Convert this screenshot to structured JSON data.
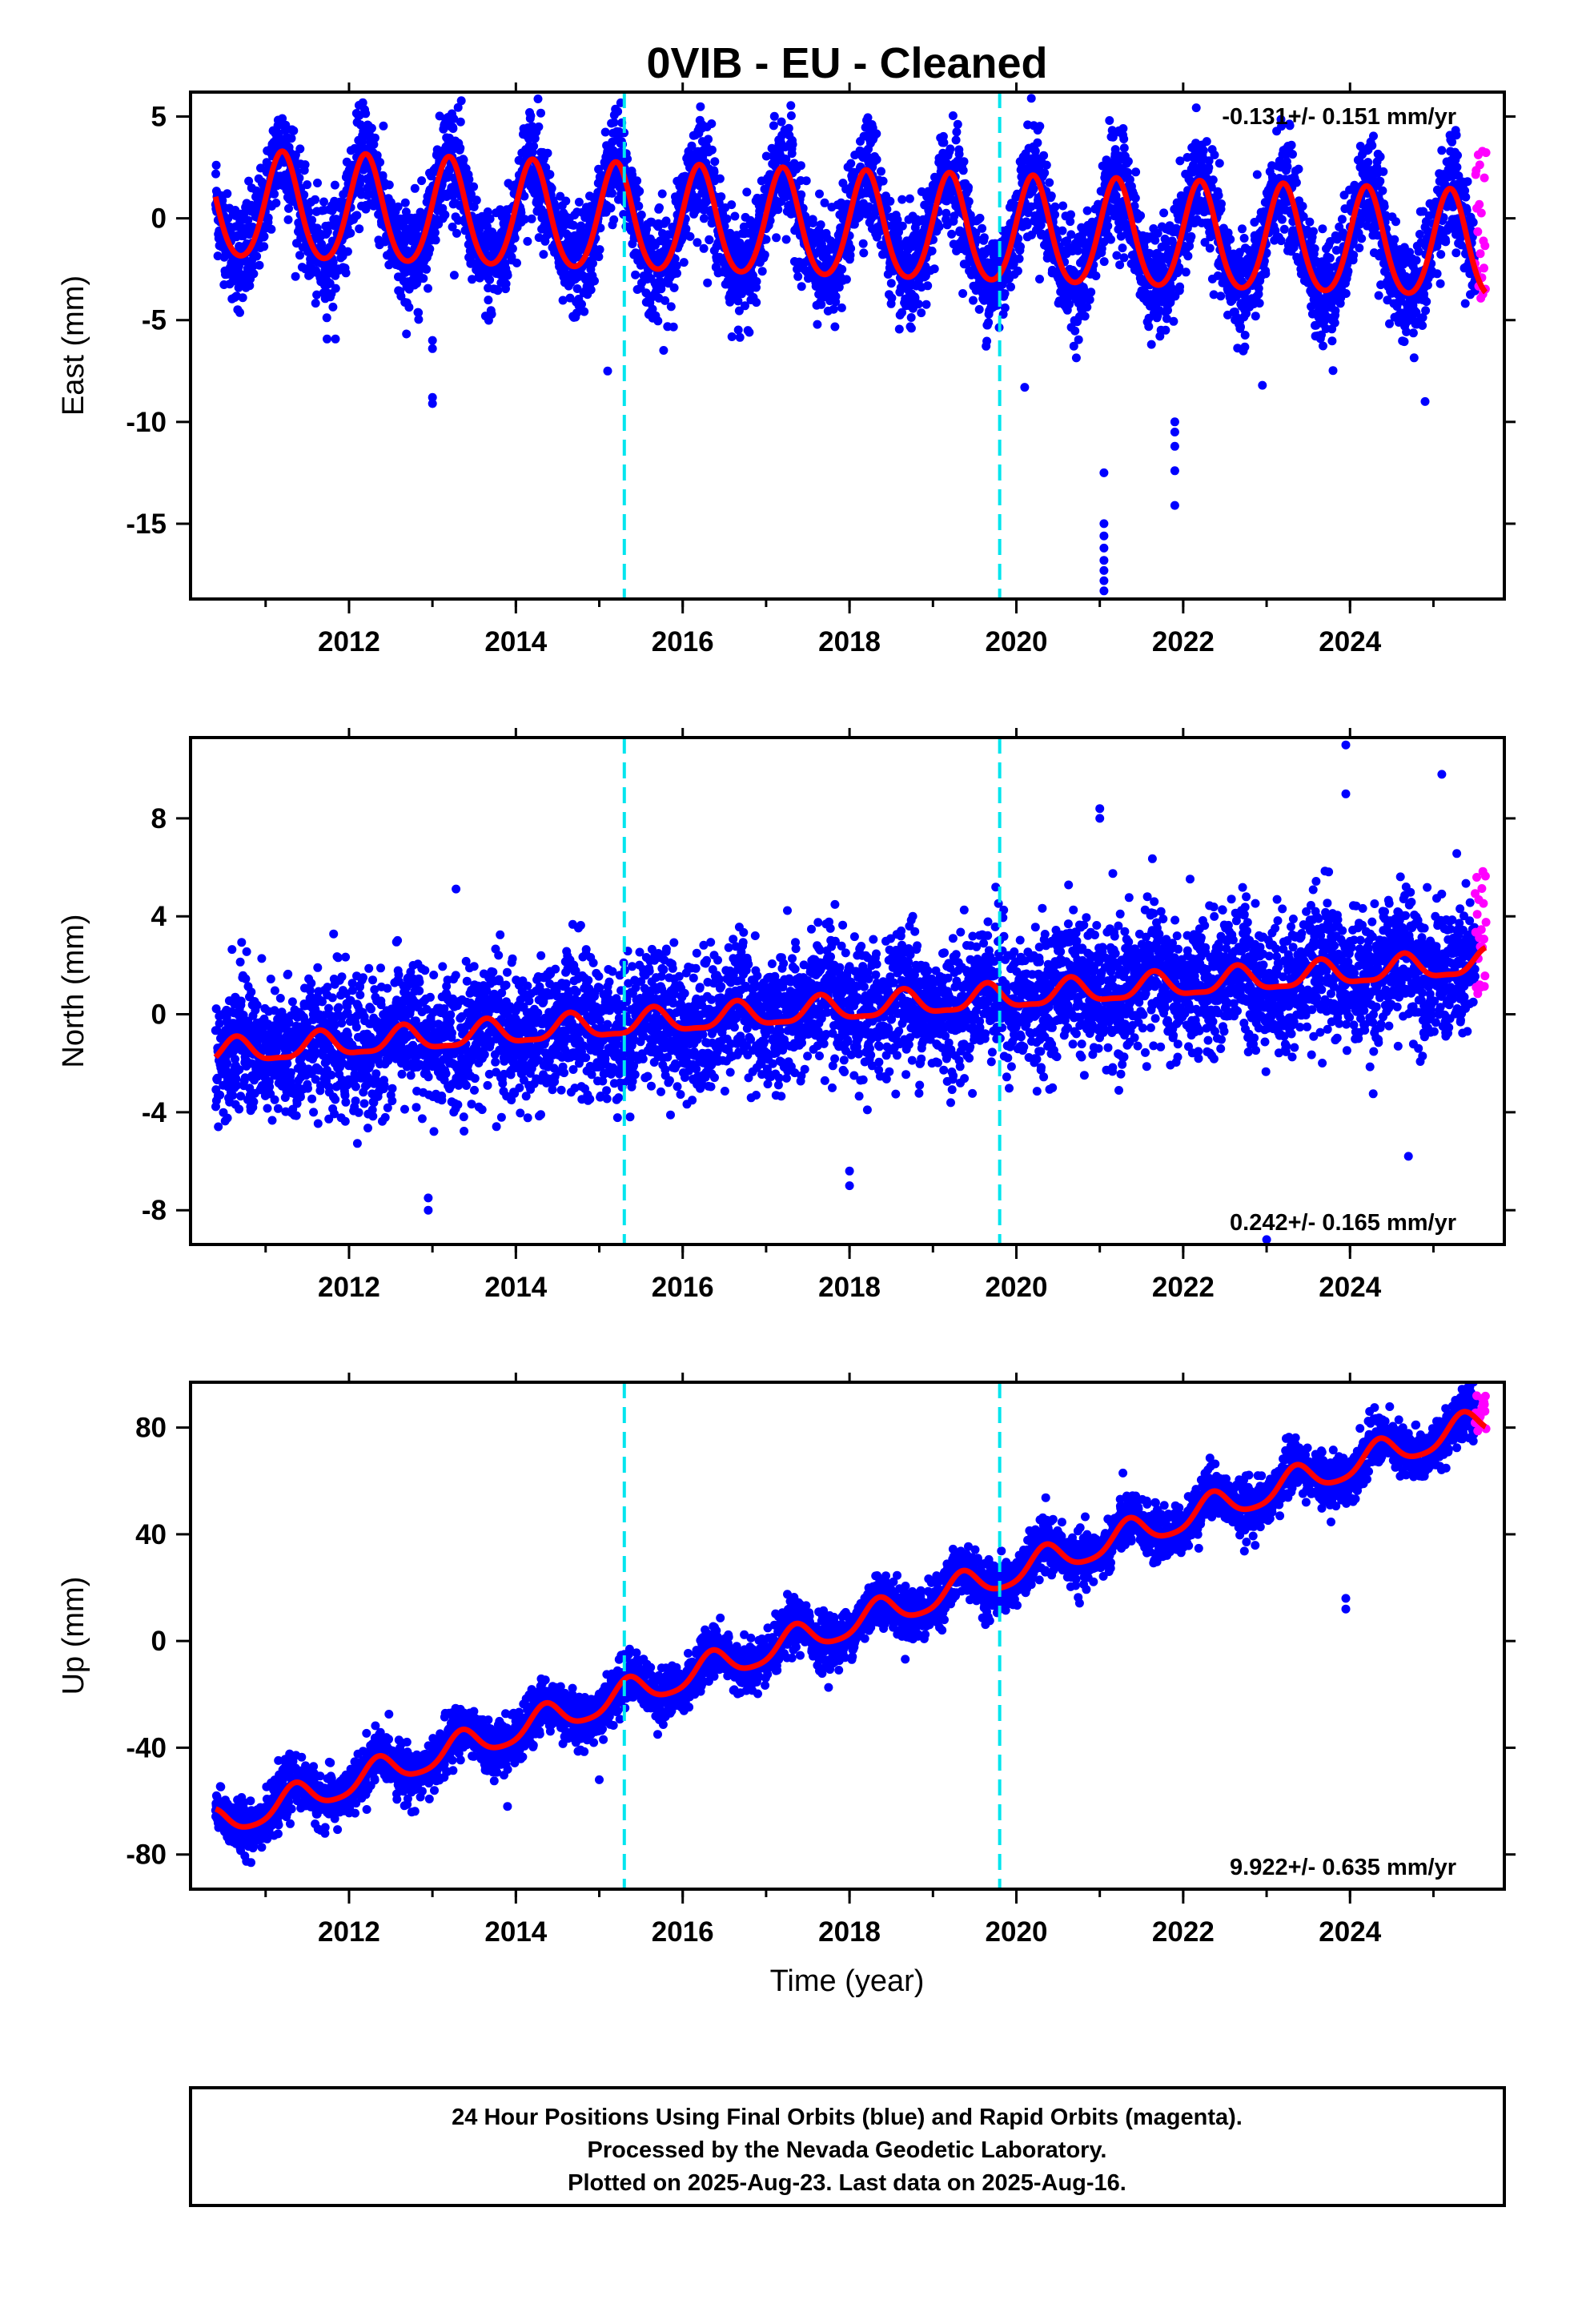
{
  "title": "0VIB  - EU - Cleaned",
  "xlabel": "Time (year)",
  "caption": [
    "24 Hour Positions Using Final Orbits (blue) and Rapid Orbits (magenta).",
    "Processed by the Nevada Geodetic Laboratory.",
    "Plotted on 2025-Aug-23. Last data on 2025-Aug-16."
  ],
  "colors": {
    "final_orbits": "#0000ff",
    "rapid_orbits": "#ff00ff",
    "model_fit": "#ff0000",
    "equipment_change": "#00e5ee",
    "frame": "#000000"
  },
  "chart_data": [
    {
      "type": "scatter",
      "name": "east",
      "ylabel": "East (mm)",
      "rate_label": "-0.131+/- 0.151 mm/yr",
      "rate_position": "top-right",
      "xlim": [
        2010.1,
        2025.85
      ],
      "ylim": [
        -18.7,
        6.2
      ],
      "xticks": [
        "2012",
        "2014",
        "2016",
        "2018",
        "2020",
        "2022",
        "2024"
      ],
      "yticks": [
        "5",
        "0",
        "-5",
        "-10",
        "-15"
      ],
      "ytick_values": [
        5,
        0,
        -5,
        -10,
        -15
      ],
      "data_start": 2010.4,
      "final_end": 2025.5,
      "rapid_end": 2025.63,
      "model": {
        "trend_mm_per_yr": -0.131,
        "offset_mm": 0.5,
        "annual_amplitude_mm": 2.6,
        "annual_phase_yr": 0.2,
        "semiannual_amplitude_mm": 0.3,
        "scatter_mm": 1.2
      },
      "rapid_range": [
        -4.5,
        4.0
      ],
      "outliers": [
        {
          "x": 2013.0,
          "values": [
            -6.0,
            -6.4,
            -8.8,
            -9.1
          ]
        },
        {
          "x": 2015.1,
          "values": [
            -7.5
          ]
        },
        {
          "x": 2020.1,
          "values": [
            -8.3
          ]
        },
        {
          "x": 2021.05,
          "values": [
            -12.5,
            -15.0,
            -15.6,
            -16.2,
            -16.8,
            -17.3,
            -17.8,
            -18.3
          ]
        },
        {
          "x": 2021.9,
          "values": [
            -10.0,
            -10.5,
            -11.2,
            -12.4,
            -14.1
          ]
        },
        {
          "x": 2022.95,
          "values": [
            -8.2
          ]
        },
        {
          "x": 2024.9,
          "values": [
            -9.0
          ]
        }
      ],
      "equipment_changes": [
        2015.3,
        2019.8
      ],
      "grid": false,
      "legend": "none"
    },
    {
      "type": "scatter",
      "name": "north",
      "ylabel": "North (mm)",
      "rate_label": "0.242+/- 0.165 mm/yr",
      "rate_position": "bottom-right",
      "xlim": [
        2010.1,
        2025.85
      ],
      "ylim": [
        -9.4,
        11.3
      ],
      "xticks": [
        "2012",
        "2014",
        "2016",
        "2018",
        "2020",
        "2022",
        "2024"
      ],
      "yticks": [
        "8",
        "4",
        "0",
        "-4",
        "-8"
      ],
      "ytick_values": [
        8,
        4,
        0,
        -4,
        -8
      ],
      "data_start": 2010.4,
      "final_end": 2025.5,
      "rapid_end": 2025.63,
      "model": {
        "trend_mm_per_yr": 0.242,
        "offset_mm": -1.6,
        "annual_amplitude_mm": 0.5,
        "annual_phase_yr": 0.65,
        "semiannual_amplitude_mm": 0.15,
        "scatter_mm": 1.3
      },
      "rapid_range": [
        0.5,
        6.2
      ],
      "outliers": [
        {
          "x": 2012.95,
          "values": [
            -7.5,
            -8.0
          ]
        },
        {
          "x": 2018.0,
          "values": [
            -6.4,
            -7.0
          ]
        },
        {
          "x": 2021.0,
          "values": [
            8.0,
            8.4
          ]
        },
        {
          "x": 2023.0,
          "values": [
            -9.2
          ]
        },
        {
          "x": 2023.95,
          "values": [
            9.0,
            11.0
          ]
        },
        {
          "x": 2025.1,
          "values": [
            9.8
          ]
        },
        {
          "x": 2024.7,
          "values": [
            -5.8
          ]
        }
      ],
      "equipment_changes": [
        2015.3,
        2019.8
      ],
      "grid": false,
      "legend": "none"
    },
    {
      "type": "scatter",
      "name": "up",
      "ylabel": "Up (mm)",
      "rate_label": "9.922+/- 0.635 mm/yr",
      "rate_position": "bottom-right",
      "xlim": [
        2010.1,
        2025.85
      ],
      "ylim": [
        -93,
        97
      ],
      "xticks": [
        "2012",
        "2014",
        "2016",
        "2018",
        "2020",
        "2022",
        "2024"
      ],
      "yticks": [
        "80",
        "40",
        "0",
        "-40",
        "-80"
      ],
      "ytick_values": [
        80,
        40,
        0,
        -40,
        -80
      ],
      "data_start": 2010.4,
      "final_end": 2025.5,
      "rapid_end": 2025.63,
      "model": {
        "trend_mm_per_yr": 9.922,
        "offset_mm": -69.0,
        "annual_amplitude_mm": 5.5,
        "annual_phase_yr": 0.35,
        "semiannual_amplitude_mm": 1.0,
        "scatter_mm": 4.5
      },
      "rapid_range": [
        76,
        92
      ],
      "outliers": [
        {
          "x": 2023.95,
          "values": [
            12.0,
            16.0
          ]
        },
        {
          "x": 2015.0,
          "values": [
            -52.0
          ]
        },
        {
          "x": 2013.9,
          "values": [
            -62.0
          ]
        }
      ],
      "equipment_changes": [
        2015.3,
        2019.8
      ],
      "grid": false,
      "legend": "none"
    }
  ]
}
